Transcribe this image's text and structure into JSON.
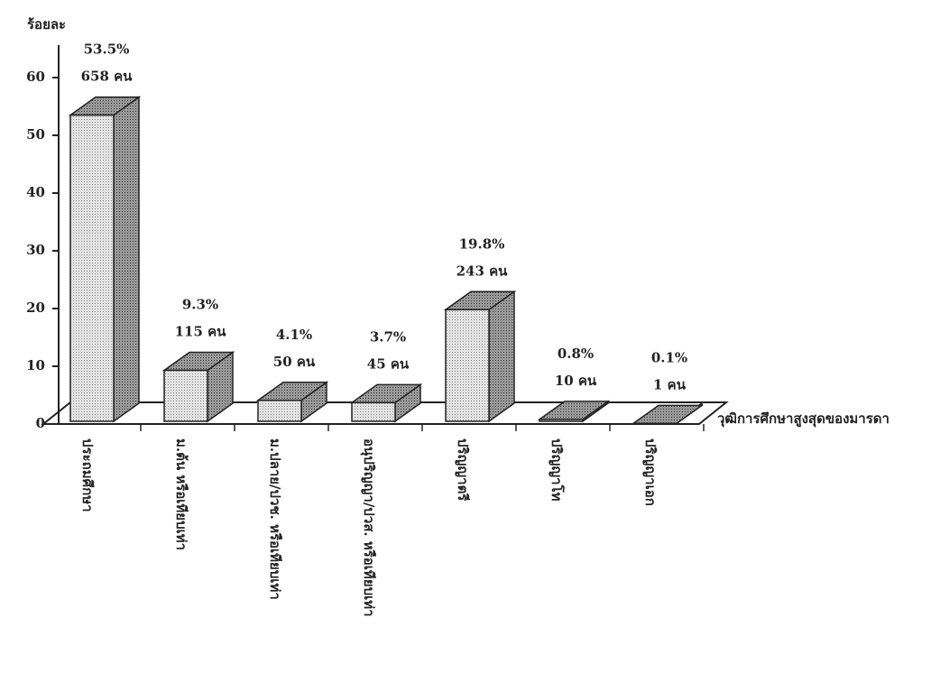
{
  "chart_data": {
    "type": "bar3d",
    "y_label": "ร้อยละ",
    "x_label": "วุฒิการศึกษาสูงสุดของมารดา",
    "categories": [
      "ประถมศึกษา",
      "ม.ต้น หรือเทียบเท่า",
      "ม.ปลาย/ปวช. หรือเทียบเท่า",
      "อนุปริญญา/ปวส. หรือเทียบเท่า",
      "ปริญญาตรี",
      "ปริญญาโท",
      "ปริญญาเอก"
    ],
    "values": [
      53.5,
      9.3,
      4.1,
      3.7,
      19.8,
      0.8,
      0.1
    ],
    "value_labels": [
      "53.5%",
      "9.3%",
      "4.1%",
      "3.7%",
      "19.8%",
      "0.8%",
      "0.1%"
    ],
    "count_labels": [
      "658 คน",
      "115 คน",
      "50 คน",
      "45 คน",
      "243 คน",
      "10 คน",
      "1 คน"
    ],
    "ylim": [
      0,
      65
    ],
    "yticks": [
      0,
      10,
      20,
      30,
      40,
      50,
      60
    ],
    "color": "#d8d8d8"
  }
}
